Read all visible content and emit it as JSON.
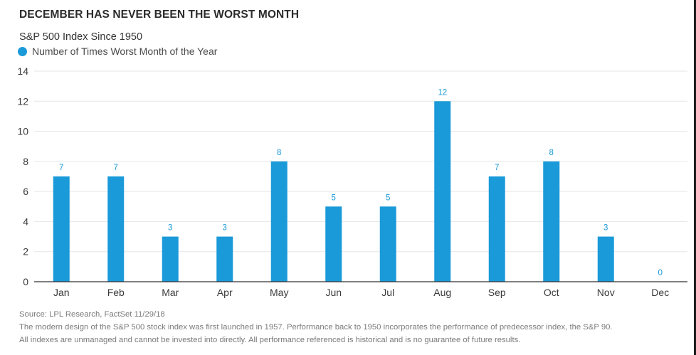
{
  "title": "DECEMBER HAS NEVER BEEN THE WORST MONTH",
  "subtitle": "S&P 500 Index Since 1950",
  "colors": {
    "bar": "#1a9ad9",
    "grid": "#e6e6e6",
    "axis": "#333333",
    "label": "#1a9ad9"
  },
  "chart_data": {
    "type": "bar",
    "title": "DECEMBER HAS NEVER BEEN THE WORST MONTH",
    "subtitle": "S&P 500 Index Since 1950",
    "categories": [
      "Jan",
      "Feb",
      "Mar",
      "Apr",
      "May",
      "Jun",
      "Jul",
      "Aug",
      "Sep",
      "Oct",
      "Nov",
      "Dec"
    ],
    "series": [
      {
        "name": "Number of Times Worst Month of the Year",
        "values": [
          7,
          7,
          3,
          3,
          8,
          5,
          5,
          12,
          7,
          8,
          3,
          0
        ]
      }
    ],
    "ylim": [
      0,
      14
    ],
    "yticks": [
      "0",
      "2",
      "4",
      "6",
      "8",
      "10",
      "12",
      "14"
    ],
    "grid": true,
    "legend": "top-left",
    "data_labels": true
  },
  "footnotes": {
    "source": "Source: LPL Research, FactSet   11/29/18",
    "line2": "The modern design of the S&P 500 stock index was first launched in 1957. Performance back to 1950 incorporates the performance of predecessor index, the S&P 90.",
    "line3": "All indexes are unmanaged and cannot be invested into directly. All performance referenced is historical and is no guarantee of future results."
  }
}
